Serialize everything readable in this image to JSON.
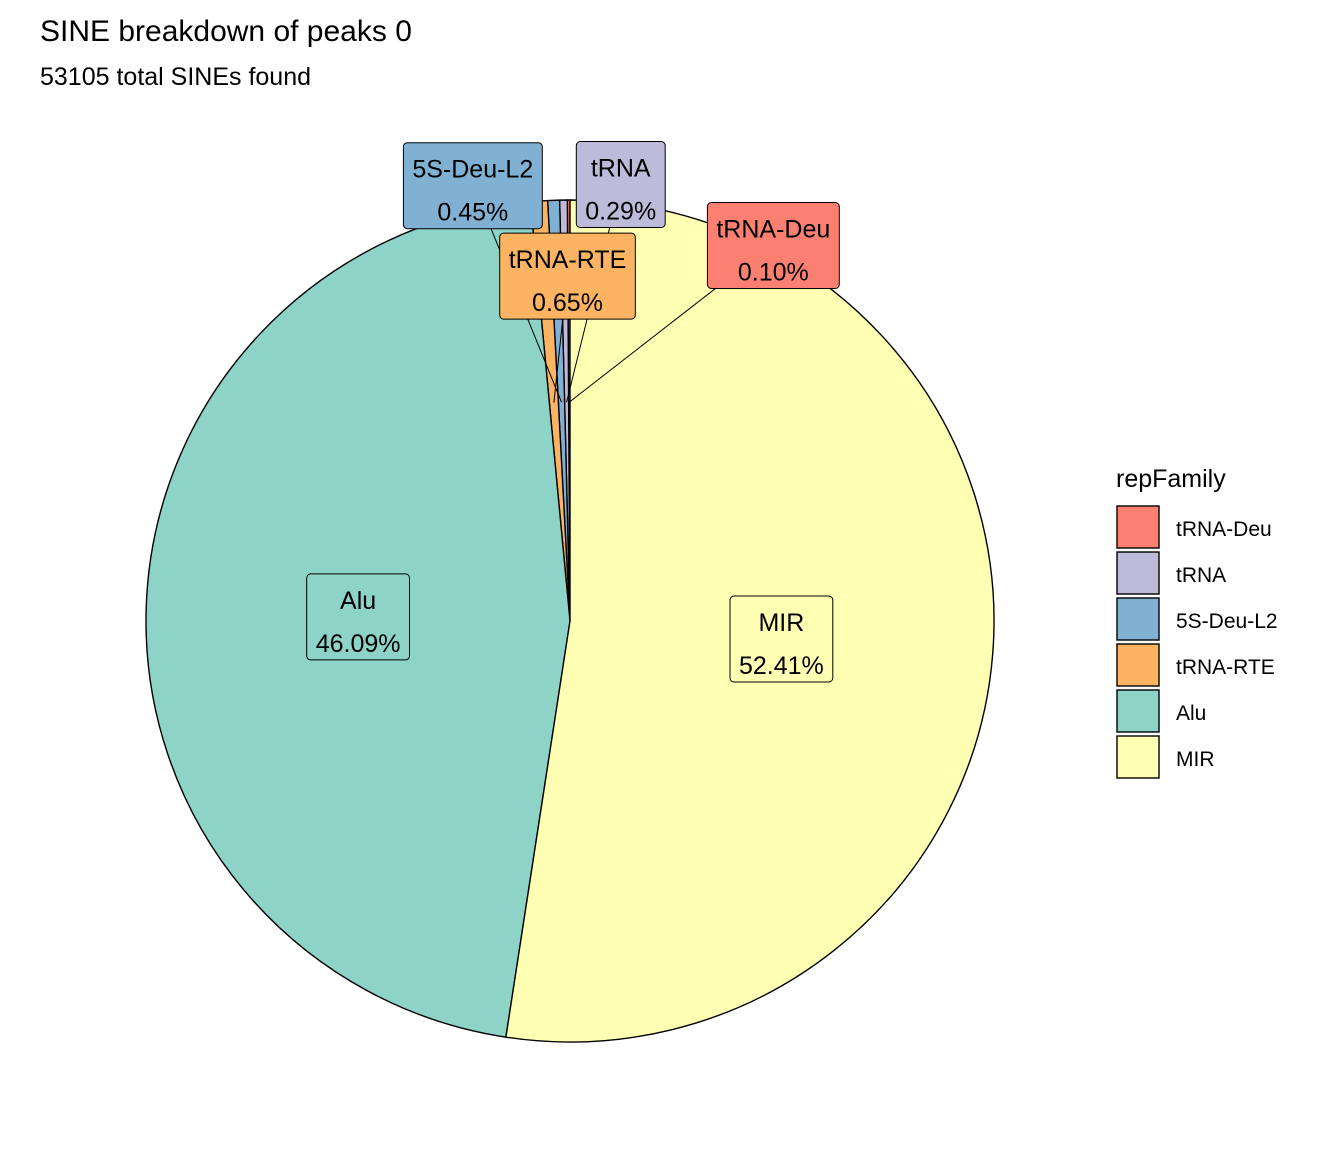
{
  "chart_data": {
    "type": "pie",
    "title": "SINE breakdown of peaks 0",
    "subtitle": "53105  total SINEs found",
    "legend": {
      "title": "repFamily",
      "placement": "right"
    },
    "slices": [
      {
        "label": "tRNA-Deu",
        "value": 0.1,
        "label_text": "0.10%",
        "color": "#FB8072"
      },
      {
        "label": "tRNA",
        "value": 0.29,
        "label_text": "0.29%",
        "color": "#BEBADA"
      },
      {
        "label": "5S-Deu-L2",
        "value": 0.45,
        "label_text": "0.45%",
        "color": "#80B1D3"
      },
      {
        "label": "tRNA-RTE",
        "value": 0.65,
        "label_text": "0.65%",
        "color": "#FDB462"
      },
      {
        "label": "Alu",
        "value": 46.09,
        "label_text": "46.09%",
        "color": "#8DD3C7"
      },
      {
        "label": "MIR",
        "value": 52.41,
        "label_text": "52.41%",
        "color": "#FFFFB3"
      }
    ]
  }
}
